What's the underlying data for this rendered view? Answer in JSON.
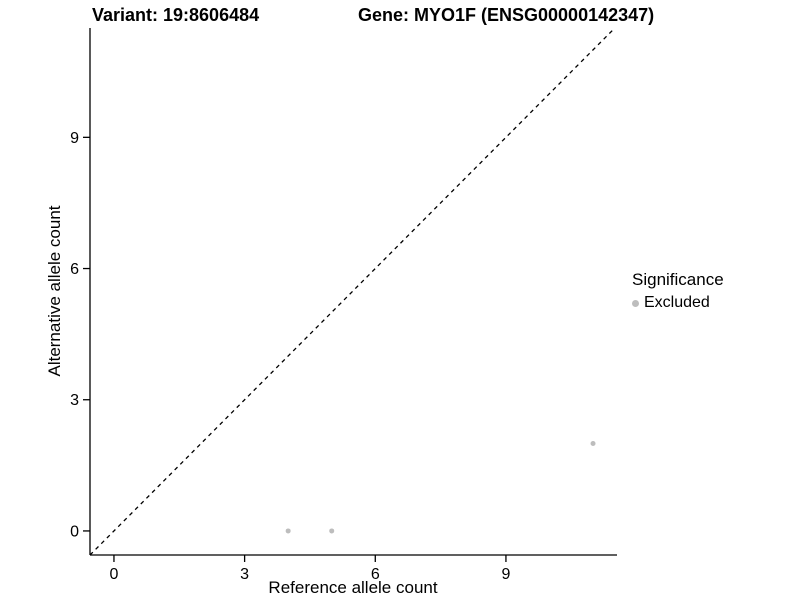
{
  "chart_data": {
    "type": "scatter",
    "title_left": "Variant: 19:8606484",
    "title_right": "Gene: MYO1F (ENSG00000142347)",
    "xlabel": "Reference allele count",
    "ylabel": "Alternative allele count",
    "x_ticks": [
      0,
      3,
      6,
      9
    ],
    "y_ticks": [
      0,
      3,
      6,
      9
    ],
    "xlim": [
      -0.55,
      11.55
    ],
    "ylim": [
      -0.55,
      11.5
    ],
    "points": [
      {
        "x": 4,
        "y": 0
      },
      {
        "x": 5,
        "y": 0
      },
      {
        "x": 11,
        "y": 2
      }
    ],
    "point_color": "#bdbdbd",
    "point_radius": 2.5,
    "identity_line": {
      "style": "dashed",
      "color": "#000000",
      "slope": 1,
      "intercept": 0
    },
    "grid": false,
    "axis_color": "#000000",
    "legend": {
      "title": "Significance",
      "position": "right",
      "items": [
        {
          "label": "Excluded",
          "color": "#bdbdbd"
        }
      ]
    }
  }
}
